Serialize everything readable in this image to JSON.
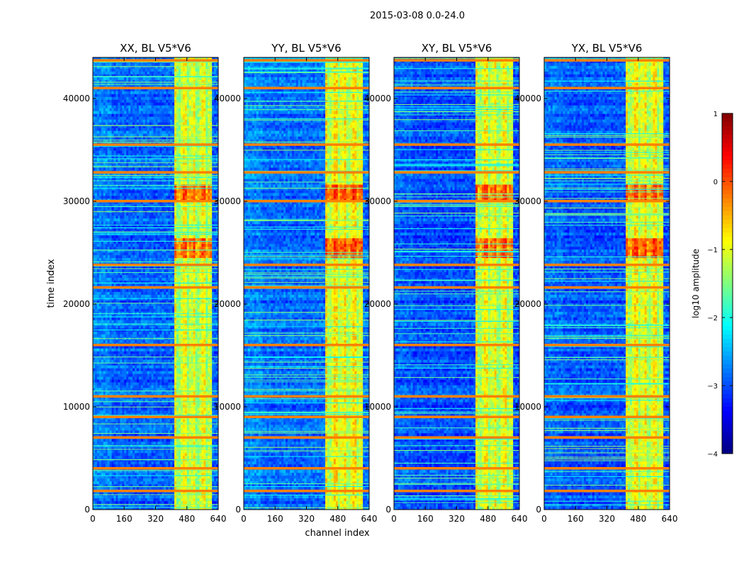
{
  "figure": {
    "suptitle": "2015-03-08 0.0-24.0"
  },
  "chart_data": {
    "type": "heatmap",
    "xlabel": "channel index",
    "ylabel": "time index",
    "xlim": [
      0,
      640
    ],
    "ylim": [
      0,
      44000
    ],
    "x_ticks": [
      0,
      160,
      320,
      480,
      640
    ],
    "y_ticks": [
      0,
      10000,
      20000,
      30000,
      40000
    ],
    "panels": [
      {
        "title": "XX, BL V5*V6",
        "base_level": -2.9,
        "left_level": -2.75,
        "band_boost": 0.1
      },
      {
        "title": "YY, BL V5*V6",
        "base_level": -2.85,
        "left_level": -2.7,
        "band_boost": 0.25
      },
      {
        "title": "XY, BL V5*V6",
        "base_level": -3.0,
        "left_level": -2.9,
        "band_boost": 0.15
      },
      {
        "title": "YX, BL V5*V6",
        "base_level": -2.95,
        "left_level": -2.85,
        "band_boost": 0.2
      }
    ],
    "active_band_channels": [
      415,
      605
    ],
    "rfi_rows_time_index": [
      43700,
      41000,
      35500,
      32800,
      30000,
      23800,
      21600,
      16000,
      11000,
      9000,
      7000,
      4000,
      1800
    ],
    "bright_time_ranges": [
      [
        30000,
        31500
      ],
      [
        24500,
        26500
      ]
    ],
    "colorbar": {
      "label": "log10 amplitude",
      "range": [
        -4,
        1
      ],
      "ticks": [
        "1",
        "0",
        "−1",
        "−2",
        "−3",
        "−4"
      ],
      "colormap": "jet"
    }
  }
}
